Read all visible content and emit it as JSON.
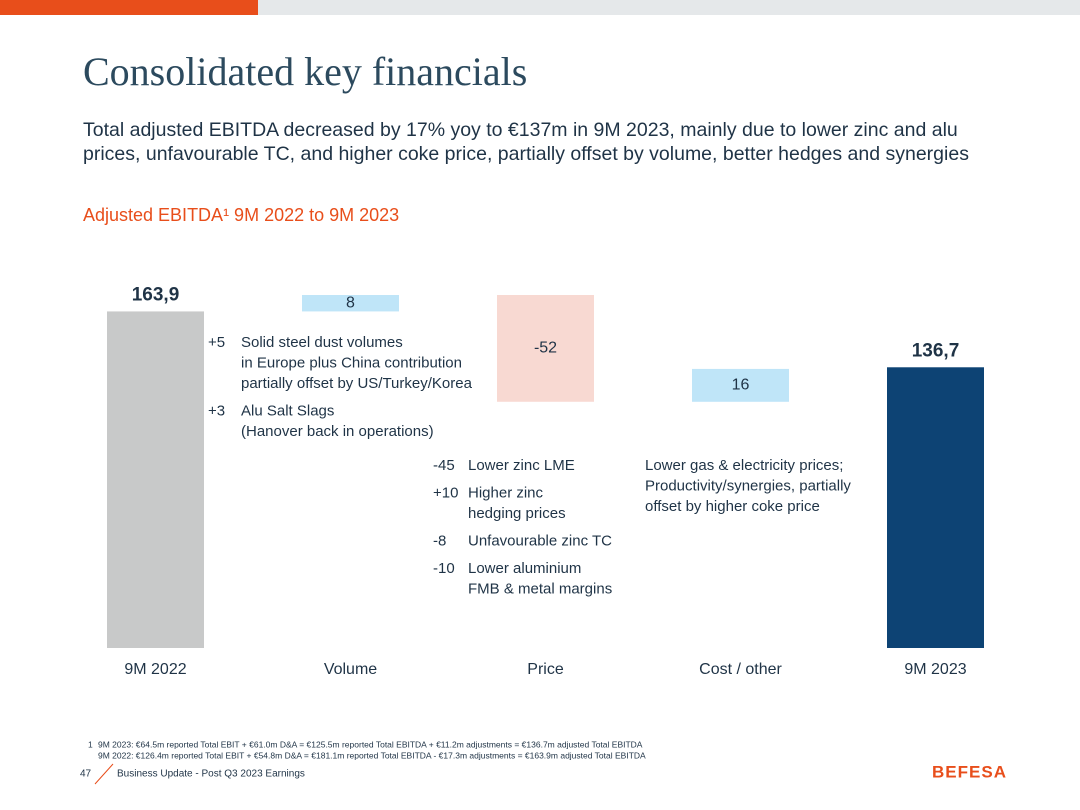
{
  "header": {
    "title": "Consolidated key financials",
    "subtitle": [
      "Total adjusted EBITDA decreased by 17% yoy to €137m in 9M 2023, mainly due to lower zinc and alu",
      "prices, unfavourable TC, and higher coke price, partially offset by volume, better hedges and synergies"
    ]
  },
  "chart_data": {
    "type": "waterfall",
    "title": "Adjusted EBITDA¹ 9M 2022 to 9M 2023",
    "categories": [
      "9M 2022",
      "Volume",
      "Price",
      "Cost / other",
      "9M 2023"
    ],
    "values": [
      163.9,
      8,
      -52,
      16,
      136.7
    ],
    "value_labels": [
      "163,9",
      "8",
      "-52",
      "16",
      "136,7"
    ],
    "colors": [
      "#c8c9c9",
      "#bfe5f8",
      "#f8d9d2",
      "#bfe5f8",
      "#0d4374"
    ],
    "annotations": [
      {
        "category": "Volume",
        "items": [
          {
            "amount": "+5",
            "lines": [
              "Solid steel dust volumes",
              "in Europe plus China contribution",
              "partially offset by US/Turkey/Korea"
            ]
          },
          {
            "amount": "+3",
            "lines": [
              "Alu Salt Slags",
              "(Hanover back in operations)"
            ]
          }
        ]
      },
      {
        "category": "Price",
        "items": [
          {
            "amount": "-45",
            "lines": [
              "Lower zinc LME"
            ]
          },
          {
            "amount": "+10",
            "lines": [
              "Higher zinc",
              "hedging prices"
            ]
          },
          {
            "amount": "-8",
            "lines": [
              "Unfavourable zinc TC"
            ]
          },
          {
            "amount": "-10",
            "lines": [
              "Lower aluminium",
              "FMB & metal margins"
            ]
          }
        ]
      },
      {
        "category": "Cost / other",
        "items": [
          {
            "lines": [
              "Lower gas & electricity prices;",
              "Productivity/synergies, partially",
              "offset by higher coke price"
            ]
          }
        ]
      }
    ]
  },
  "footnote": {
    "marker": "1",
    "lines": [
      "9M 2023: €64.5m reported Total EBIT + €61.0m D&A = €125.5m reported Total EBITDA + €11.2m adjustments = €136.7m adjusted Total EBITDA",
      "9M 2022: €126.4m reported Total EBIT + €54.8m D&A = €181.1m reported Total EBITDA - €17.3m adjustments = €163.9m adjusted Total EBITDA"
    ]
  },
  "footer": {
    "page": "47",
    "text": "Business Update - Post Q3 2023 Earnings",
    "logo": "BEFESA"
  }
}
